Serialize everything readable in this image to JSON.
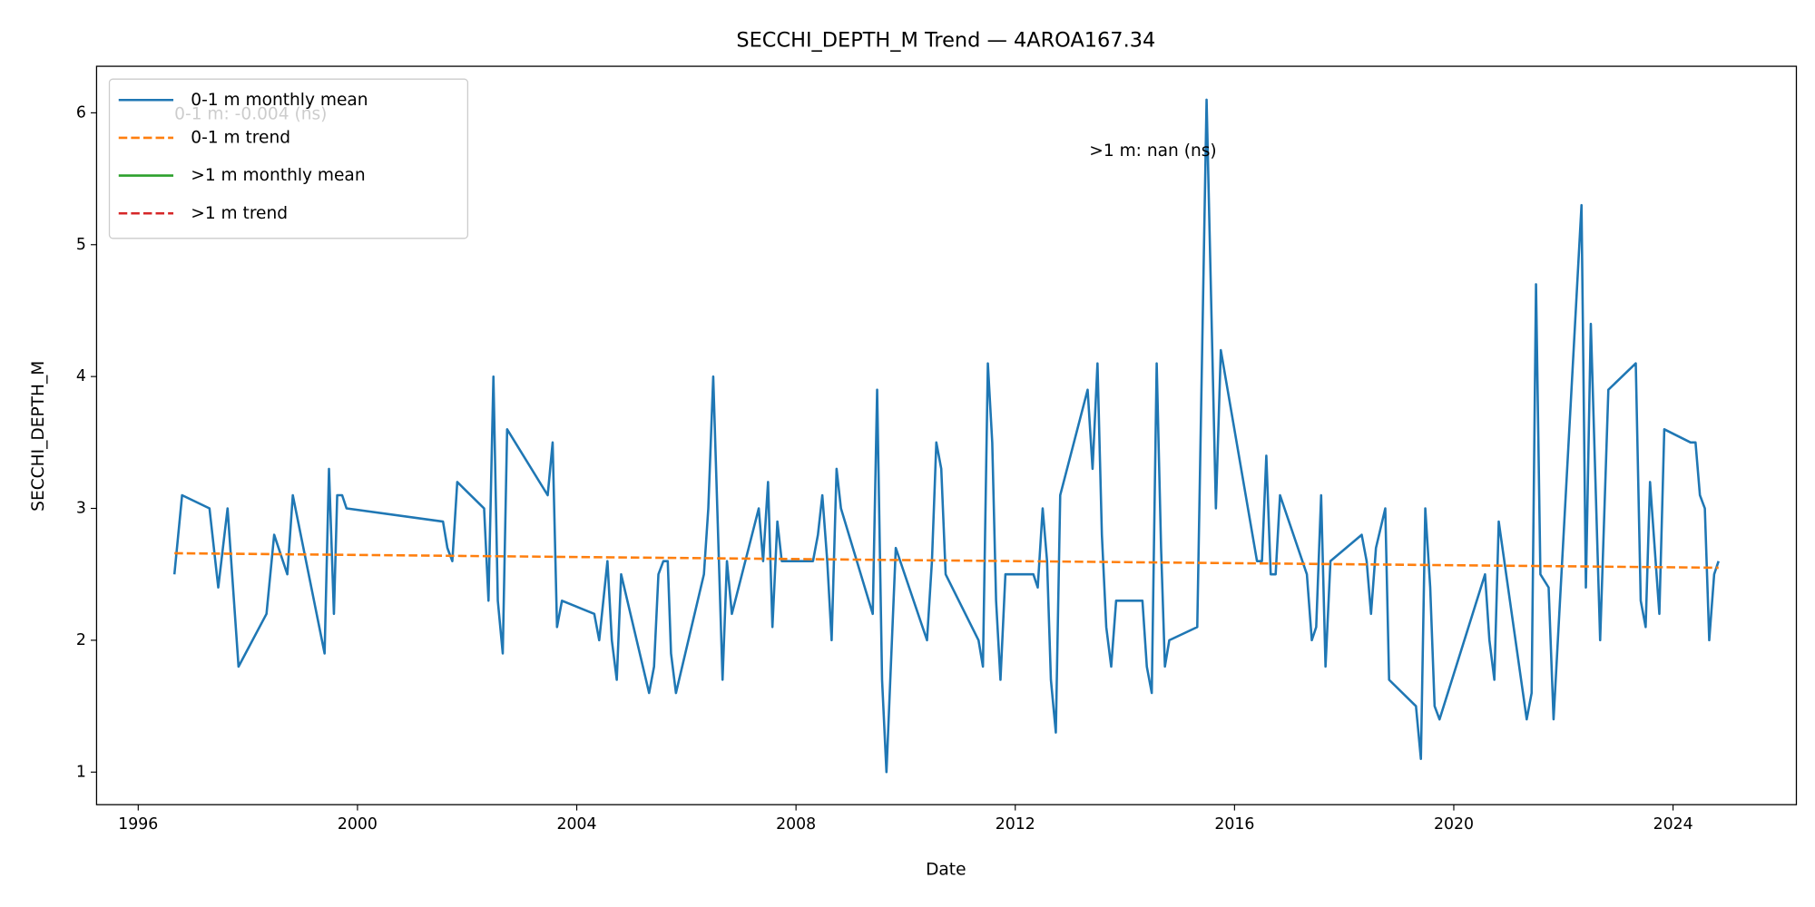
{
  "chart_data": {
    "type": "line",
    "title": "SECCHI_DEPTH_M Trend — 4AROA167.34",
    "x_label": "Date",
    "y_label": "SECCHI_DEPTH_M",
    "xlim": [
      1995.24,
      2026.25
    ],
    "ylim": [
      0.753,
      6.353
    ],
    "xticks": [
      1996,
      2000,
      2004,
      2008,
      2012,
      2016,
      2020,
      2024
    ],
    "yticks": [
      1,
      2,
      3,
      4,
      5,
      6
    ],
    "legend": "upper left",
    "annotations": [
      {
        "text": "0-1 m: -0.004 (ns)",
        "x": 1996.66,
        "y": 5.99,
        "color": "#aaaaaa"
      },
      {
        "text": ">1 m: nan (ns)",
        "x": 2013.35,
        "y": 5.71,
        "color": "#000000"
      }
    ],
    "series": [
      {
        "name": "0-1 m monthly mean",
        "color": "#1f77b4",
        "dash": false,
        "x": [
          1996.66,
          1996.8,
          1997.3,
          1997.46,
          1997.63,
          1997.83,
          1998.34,
          1998.48,
          1998.72,
          1998.82,
          1999.4,
          1999.48,
          1999.57,
          1999.63,
          1999.72,
          1999.8,
          2001.56,
          2001.64,
          2001.73,
          2001.82,
          2002.31,
          2002.39,
          2002.48,
          2002.56,
          2002.65,
          2002.73,
          2003.47,
          2003.56,
          2003.64,
          2003.73,
          2004.32,
          2004.41,
          2004.56,
          2004.64,
          2004.73,
          2004.81,
          2005.32,
          2005.41,
          2005.49,
          2005.58,
          2005.66,
          2005.72,
          2005.81,
          2006.32,
          2006.4,
          2006.49,
          2006.66,
          2006.74,
          2006.83,
          2007.32,
          2007.4,
          2007.49,
          2007.57,
          2007.66,
          2007.74,
          2008.31,
          2008.4,
          2008.48,
          2008.57,
          2008.65,
          2008.74,
          2008.82,
          2009.4,
          2009.48,
          2009.57,
          2009.65,
          2009.82,
          2010.39,
          2010.48,
          2010.56,
          2010.65,
          2010.73,
          2011.33,
          2011.41,
          2011.5,
          2011.58,
          2011.65,
          2011.73,
          2011.82,
          2012.33,
          2012.41,
          2012.5,
          2012.58,
          2012.65,
          2012.74,
          2012.82,
          2013.32,
          2013.41,
          2013.5,
          2013.58,
          2013.66,
          2013.75,
          2013.84,
          2014.32,
          2014.4,
          2014.49,
          2014.58,
          2014.66,
          2014.73,
          2014.81,
          2015.32,
          2015.49,
          2015.66,
          2015.75,
          2016.41,
          2016.5,
          2016.58,
          2016.66,
          2016.75,
          2016.83,
          2017.32,
          2017.41,
          2017.49,
          2017.58,
          2017.66,
          2017.75,
          2018.32,
          2018.41,
          2018.49,
          2018.58,
          2018.75,
          2018.82,
          2019.31,
          2019.4,
          2019.48,
          2019.57,
          2019.65,
          2019.74,
          2020.57,
          2020.65,
          2020.74,
          2020.82,
          2021.33,
          2021.42,
          2021.5,
          2021.58,
          2021.73,
          2021.82,
          2022.33,
          2022.41,
          2022.5,
          2022.67,
          2022.82,
          2023.32,
          2023.41,
          2023.5,
          2023.58,
          2023.75,
          2023.84,
          2024.32,
          2024.41,
          2024.49,
          2024.58,
          2024.66,
          2024.75,
          2024.83
        ],
        "values": [
          2.5,
          3.1,
          3.0,
          2.4,
          3.0,
          1.8,
          2.2,
          2.8,
          2.5,
          3.1,
          1.9,
          3.3,
          2.2,
          3.1,
          3.1,
          3.0,
          2.9,
          2.7,
          2.6,
          3.2,
          3.0,
          2.3,
          4.0,
          2.3,
          1.9,
          3.6,
          3.1,
          3.5,
          2.1,
          2.3,
          2.2,
          2.0,
          2.6,
          2.0,
          1.7,
          2.5,
          1.6,
          1.8,
          2.5,
          2.6,
          2.6,
          1.9,
          1.6,
          2.5,
          3.0,
          4.0,
          1.7,
          2.6,
          2.2,
          3.0,
          2.6,
          3.2,
          2.1,
          2.9,
          2.6,
          2.6,
          2.8,
          3.1,
          2.6,
          2.0,
          3.3,
          3.0,
          2.2,
          3.9,
          1.7,
          1.0,
          2.7,
          2.0,
          2.6,
          3.5,
          3.3,
          2.5,
          2.0,
          1.8,
          4.1,
          3.5,
          2.3,
          1.7,
          2.5,
          2.5,
          2.4,
          3.0,
          2.6,
          1.7,
          1.3,
          3.1,
          3.9,
          3.3,
          4.1,
          2.8,
          2.1,
          1.8,
          2.3,
          2.3,
          1.8,
          1.6,
          4.1,
          2.7,
          1.8,
          2.0,
          2.1,
          6.1,
          3.0,
          4.2,
          2.6,
          2.6,
          3.4,
          2.5,
          2.5,
          3.1,
          2.5,
          2.0,
          2.1,
          3.1,
          1.8,
          2.6,
          2.8,
          2.6,
          2.2,
          2.7,
          3.0,
          1.7,
          1.5,
          1.1,
          3.0,
          2.4,
          1.5,
          1.4,
          2.5,
          2.0,
          1.7,
          2.9,
          1.4,
          1.6,
          4.7,
          2.5,
          2.4,
          1.4,
          5.3,
          2.4,
          4.4,
          2.0,
          3.9,
          4.1,
          2.3,
          2.1,
          3.2,
          2.2,
          3.6,
          3.5,
          3.5,
          3.1,
          3.0,
          2.0,
          2.5,
          2.6
        ]
      },
      {
        "name": "0-1 m trend",
        "color": "#ff7f0e",
        "dash": true,
        "x": [
          1996.66,
          2024.83
        ],
        "values": [
          2.66,
          2.55
        ]
      },
      {
        "name": ">1 m monthly mean",
        "color": "#2ca02c",
        "dash": false,
        "x": [],
        "values": []
      },
      {
        "name": ">1 m trend",
        "color": "#d62728",
        "dash": true,
        "x": [],
        "values": []
      }
    ]
  }
}
